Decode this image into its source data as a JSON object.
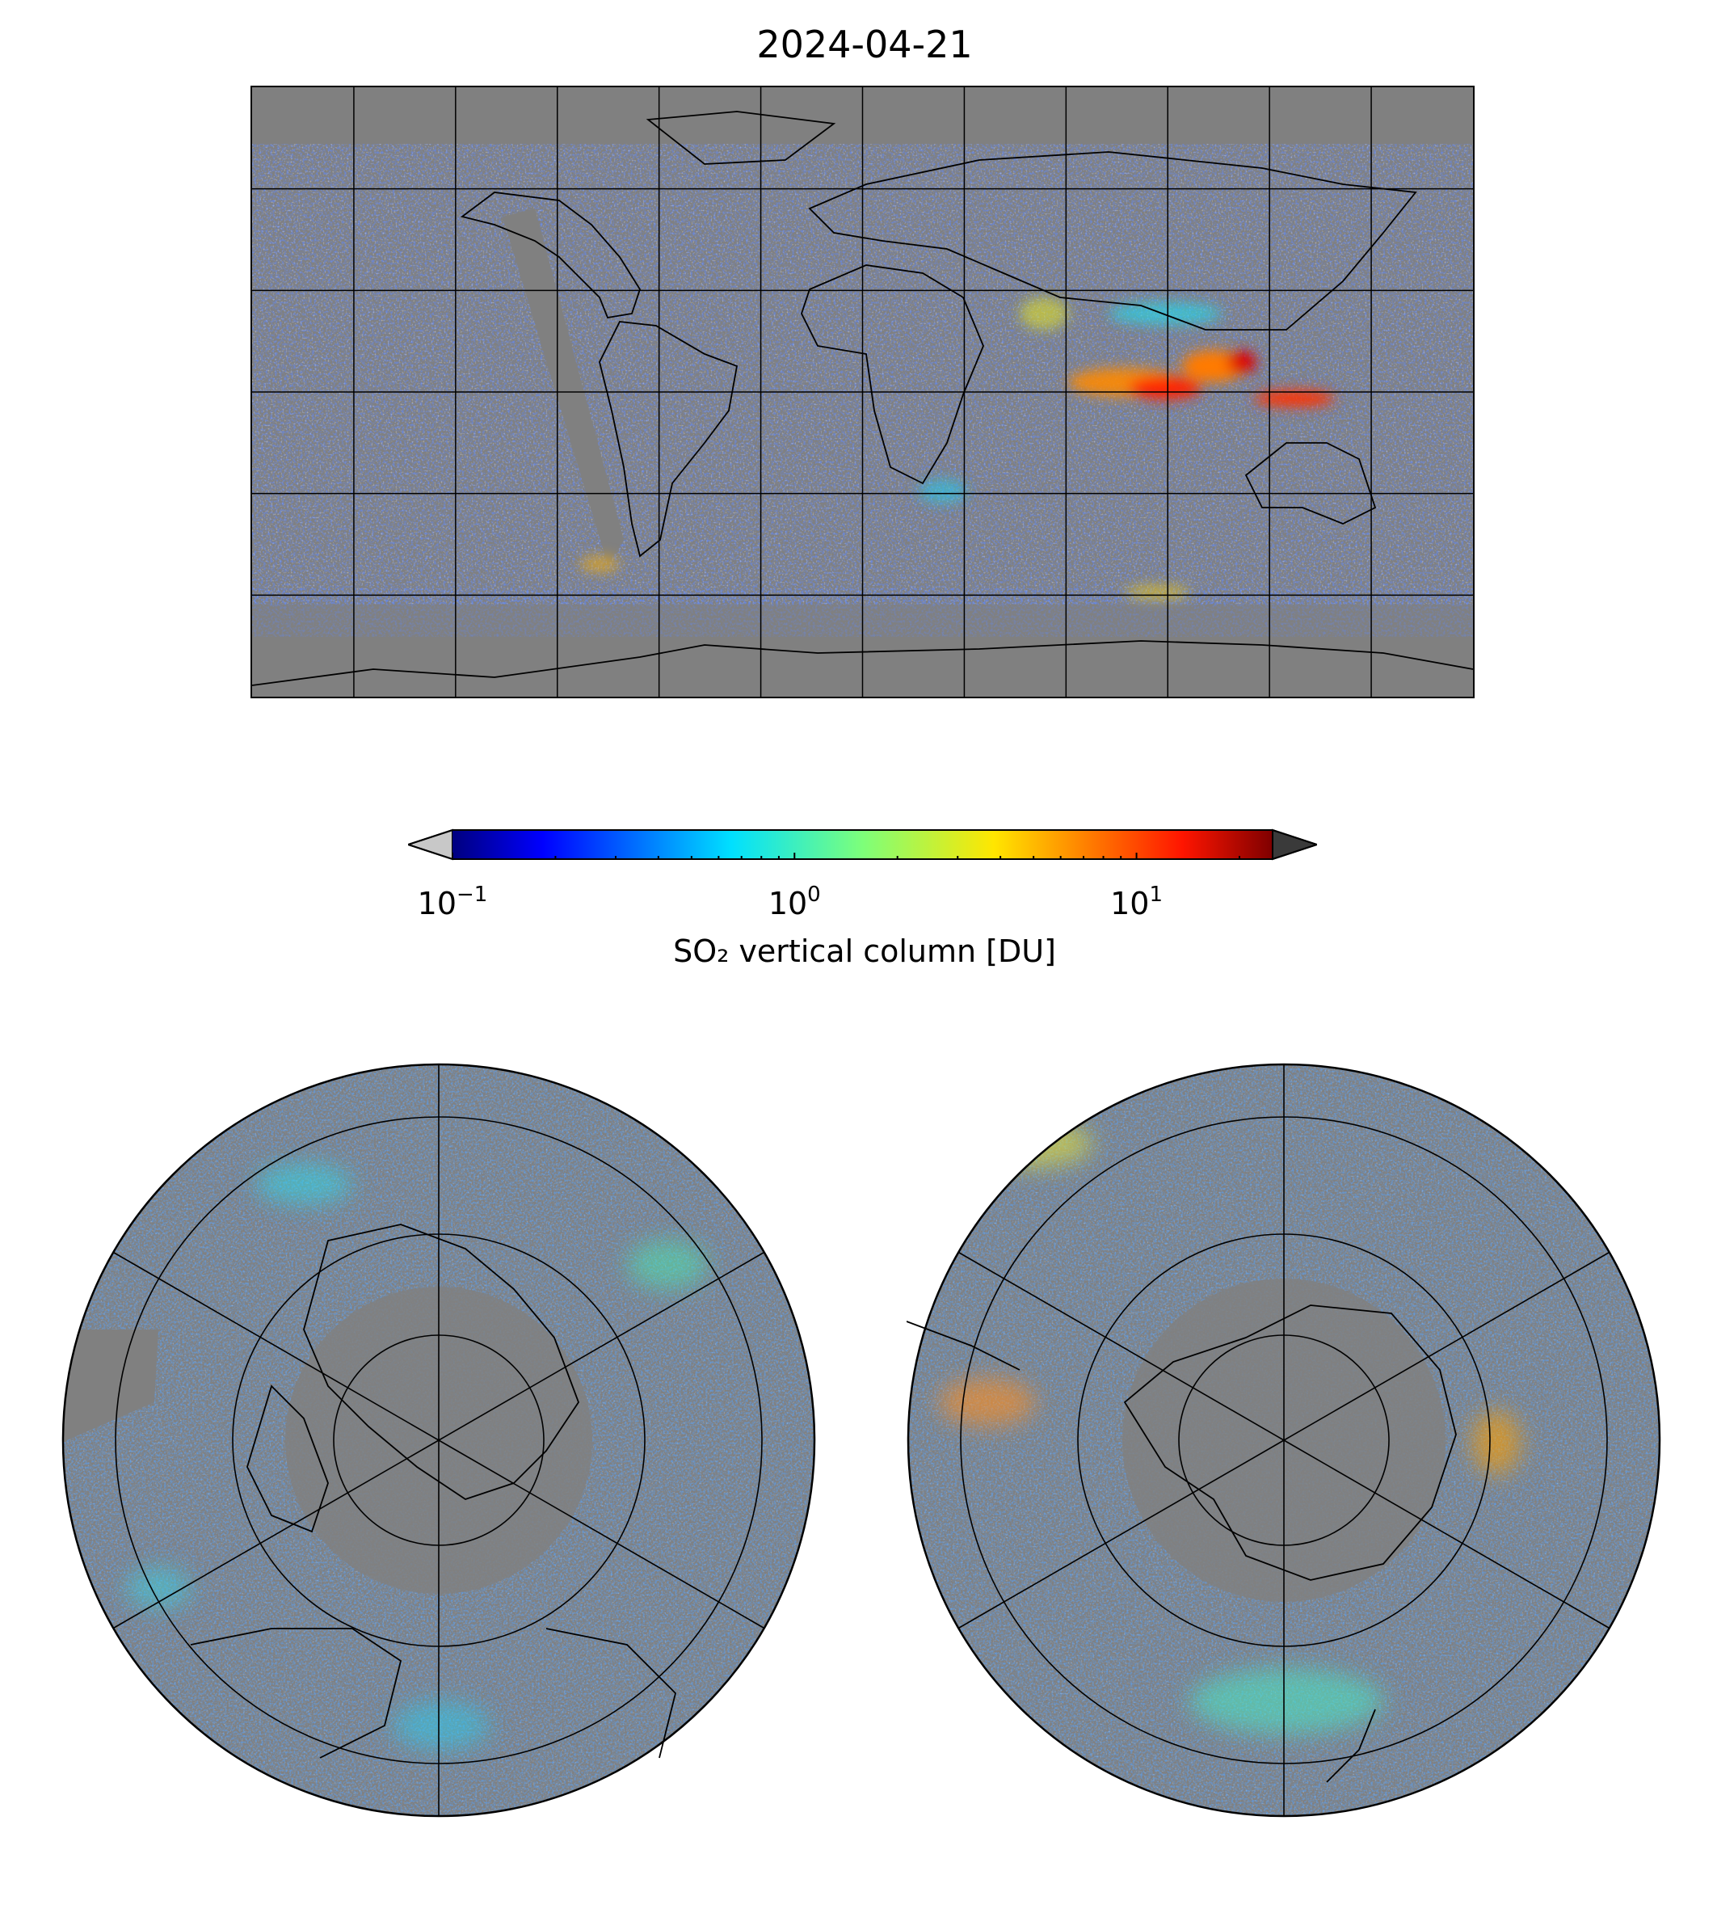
{
  "title": "2024-04-21",
  "colorbar": {
    "label": "SO₂ vertical column [DU]",
    "scale": "log",
    "range": [
      0.1,
      25
    ],
    "colormap": "jet",
    "extend": "both",
    "under_color": "#c8c8c8",
    "over_color": "#3a3a3a",
    "ticks": [
      {
        "base": "10",
        "exp": "−1",
        "value": 0.1
      },
      {
        "base": "10",
        "exp": "0",
        "value": 1
      },
      {
        "base": "10",
        "exp": "1",
        "value": 10
      }
    ]
  },
  "maps": {
    "world": {
      "projection": "equirectangular",
      "graticule_deg": 30,
      "background": "#808080"
    },
    "north_polar": {
      "projection": "north-polar-stereographic",
      "background": "#808080"
    },
    "south_polar": {
      "projection": "south-polar-stereographic",
      "background": "#808080"
    }
  }
}
